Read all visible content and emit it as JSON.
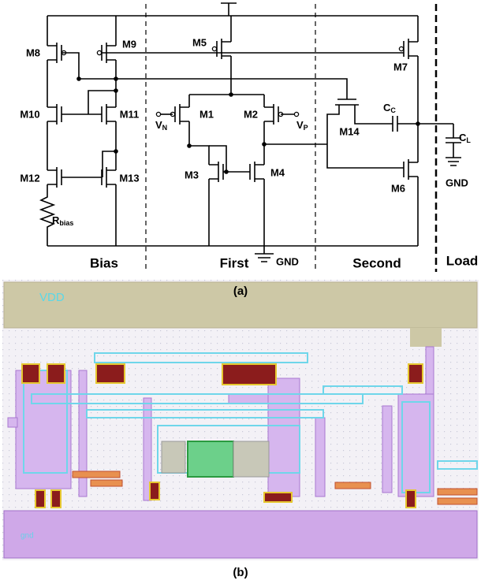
{
  "schematic": {
    "device_labels": [
      "M8",
      "M9",
      "M5",
      "M7",
      "M10",
      "M11",
      "M1",
      "M2",
      "M14",
      "M12",
      "M13",
      "M3",
      "M4",
      "M6"
    ],
    "subscripted_labels": [
      {
        "main": "V",
        "sub": "N"
      },
      {
        "main": "V",
        "sub": "P"
      },
      {
        "main": "C",
        "sub": "C"
      },
      {
        "main": "C",
        "sub": "L"
      },
      {
        "main": "R",
        "sub": "bias"
      }
    ],
    "ground_labels": [
      "GND",
      "GND"
    ],
    "stages": [
      "Bias",
      "First",
      "Second",
      "Load"
    ],
    "caption": "(a)"
  },
  "layout": {
    "vdd_label": "VDD",
    "gnd_label": "gnd",
    "caption": "(b)"
  }
}
